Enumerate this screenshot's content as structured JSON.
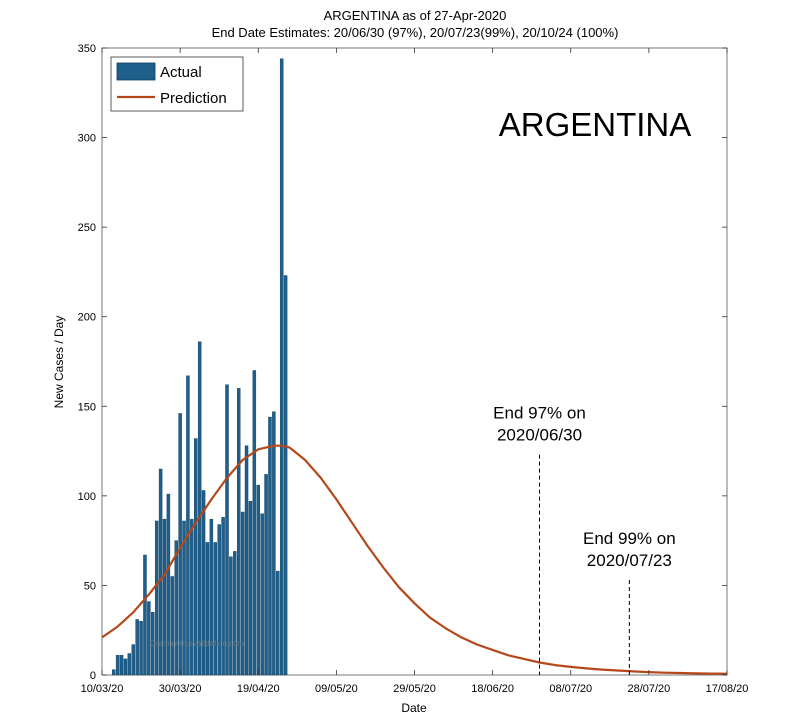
{
  "chart_data": {
    "type": "bar",
    "title": "ARGENTINA as of 27-Apr-2020",
    "subtitle": "End Date Estimates: 20/06/30 (97%), 20/07/23(99%), 20/10/24 (100%)",
    "xlabel": "Date",
    "ylabel": "New Cases / Day",
    "overlay_label": "ARGENTINA",
    "x_start_date": "2020-03-10",
    "xlim": [
      0,
      160
    ],
    "ylim": [
      0,
      350
    ],
    "y_ticks": [
      0,
      50,
      100,
      150,
      200,
      250,
      300,
      350
    ],
    "x_ticks": [
      {
        "day": 0,
        "label": "10/03/20"
      },
      {
        "day": 20,
        "label": "30/03/20"
      },
      {
        "day": 40,
        "label": "19/04/20"
      },
      {
        "day": 60,
        "label": "09/05/20"
      },
      {
        "day": 80,
        "label": "29/05/20"
      },
      {
        "day": 100,
        "label": "18/06/20"
      },
      {
        "day": 120,
        "label": "08/07/20"
      },
      {
        "day": 140,
        "label": "28/07/20"
      },
      {
        "day": 160,
        "label": "17/08/20"
      }
    ],
    "legend": {
      "placement": "top-left",
      "entries": [
        "Actual",
        "Prediction"
      ]
    },
    "grid": false,
    "colors": {
      "actual": "#1f5f8b",
      "prediction": "#b5481a"
    },
    "series": [
      {
        "name": "Actual",
        "type": "bar",
        "x": [
          3,
          4,
          5,
          6,
          7,
          8,
          9,
          10,
          11,
          12,
          13,
          14,
          15,
          16,
          17,
          18,
          19,
          20,
          21,
          22,
          23,
          24,
          25,
          26,
          27,
          28,
          29,
          30,
          31,
          32,
          33,
          34,
          35,
          36,
          37,
          38,
          39,
          40,
          41,
          42,
          43,
          44,
          45,
          46,
          47
        ],
        "values": [
          3,
          11,
          11,
          9,
          12,
          17,
          31,
          30,
          67,
          41,
          35,
          86,
          115,
          87,
          101,
          55,
          75,
          146,
          86,
          167,
          87,
          132,
          186,
          103,
          74,
          87,
          74,
          84,
          88,
          162,
          66,
          69,
          160,
          91,
          128,
          97,
          170,
          106,
          90,
          112,
          144,
          147,
          58,
          344,
          223
        ]
      },
      {
        "name": "Prediction",
        "type": "line",
        "x": [
          0,
          4,
          8,
          12,
          16,
          20,
          24,
          28,
          32,
          36,
          40,
          44,
          46,
          48,
          52,
          56,
          60,
          64,
          68,
          72,
          76,
          80,
          84,
          88,
          92,
          96,
          100,
          104,
          108,
          112,
          116,
          120,
          124,
          128,
          132,
          136,
          140,
          144,
          148,
          152,
          156,
          160
        ],
        "values": [
          21,
          27,
          35,
          45,
          56,
          71,
          85,
          98,
          110,
          120,
          126,
          128,
          128,
          127,
          120,
          110,
          98,
          85,
          72,
          60,
          49,
          40,
          32,
          26,
          21,
          17,
          14,
          11,
          9,
          7,
          5.5,
          4.5,
          3.7,
          3.0,
          2.5,
          2.0,
          1.6,
          1.3,
          1.1,
          0.9,
          0.8,
          0.7
        ]
      }
    ],
    "annotations": [
      {
        "day": 112,
        "lines": [
          "End 97% on",
          "2020/06/30"
        ],
        "y_top": 123,
        "y_bottom": 0
      },
      {
        "day": 135,
        "lines": [
          "End 99% on",
          "2020/07/23"
        ],
        "y_top": 53,
        "y_bottom": 0
      }
    ],
    "watermark_text": "Coronavirusvalidation.com"
  }
}
